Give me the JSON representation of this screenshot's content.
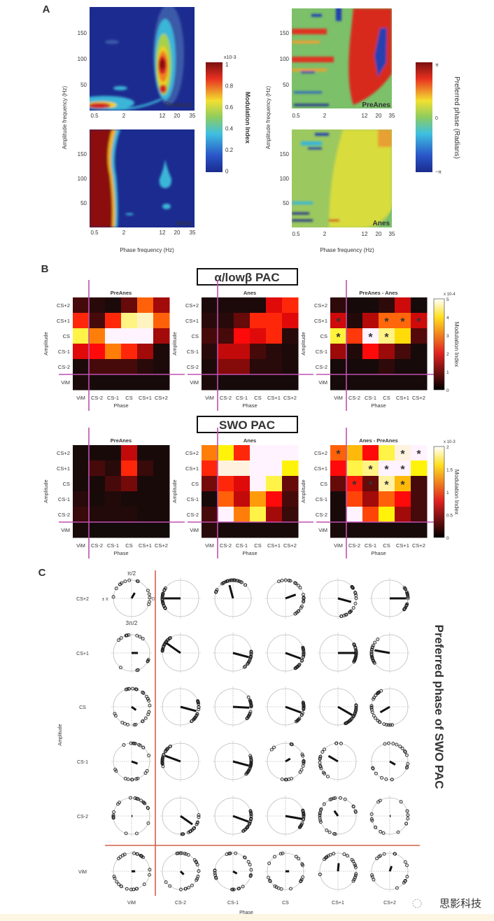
{
  "panel_a": {
    "label": "A",
    "left": {
      "plots": [
        {
          "label": "PreAnes"
        },
        {
          "label": "Anes"
        }
      ],
      "xticks": [
        "0.5",
        "2",
        "12",
        "20",
        "35"
      ],
      "yticks": [
        "150",
        "100",
        "50"
      ],
      "xlabel": "Phase frequency (Hz)",
      "ylabel": "Amplitude frequency (Hz)",
      "colorbar": {
        "title": "Modulation Index",
        "exponent": "x10-3",
        "ticks": [
          "1",
          "0.8",
          "0.6",
          "0.4",
          "0.2",
          "0"
        ],
        "colormap": "jet"
      }
    },
    "right": {
      "plots": [
        {
          "label": "PreAnes"
        },
        {
          "label": "Anes"
        }
      ],
      "xticks": [
        "0.5",
        "2",
        "12",
        "20",
        "35"
      ],
      "yticks": [
        "150",
        "100",
        "50"
      ],
      "xlabel": "Phase frequency (Hz)",
      "ylabel": "Amplitude frequency (Hz)",
      "colorbar": {
        "title": "Preferred phase (Radians)",
        "ticks": [
          "π",
          "0",
          "−π"
        ],
        "colormap": "jet"
      }
    }
  },
  "panel_b": {
    "label": "B",
    "rows": [
      "CS+2",
      "CS+1",
      "CS",
      "CS-1",
      "CS-2",
      "ViM"
    ],
    "cols": [
      "ViM",
      "CS-2",
      "CS-1",
      "CS",
      "CS+1",
      "CS+2"
    ],
    "xlabel": "Phase",
    "ylabel": "Amplitude",
    "divider_color": "#c050b0",
    "sections": [
      {
        "title": "α/lowβ PAC",
        "colorbar": {
          "title": "Modulation Index",
          "exponent": "x 10-4",
          "ticks": [
            "5",
            "4",
            "3",
            "2",
            "1",
            "0"
          ],
          "max": 5,
          "colormap": "hot"
        },
        "maps": [
          {
            "title": "PreAnes",
            "values": [
              [
                0.5,
                0.25,
                0.15,
                0.75,
                2.75,
                1.25
              ],
              [
                2.25,
                0.5,
                2.25,
                4.5,
                4.75,
                2.75
              ],
              [
                4.25,
                3,
                5,
                5,
                5,
                1.25
              ],
              [
                1.75,
                2,
                3,
                2.25,
                1.25,
                0.15
              ],
              [
                0.15,
                0.5,
                0.5,
                0.5,
                0.25,
                0.15
              ],
              [
                0.15,
                0.1,
                0.1,
                0.1,
                0.1,
                0.1
              ]
            ],
            "stars": []
          },
          {
            "title": "Anes",
            "values": [
              [
                0.15,
                0.15,
                0.15,
                0.15,
                1.75,
                2.25
              ],
              [
                0.25,
                0.25,
                0.75,
                2.25,
                2.25,
                1.75
              ],
              [
                0.5,
                0.5,
                2,
                1.75,
                2.25,
                0.25
              ],
              [
                0.25,
                1.5,
                1.5,
                0.5,
                0.25,
                0.15
              ],
              [
                0.15,
                1,
                1,
                0.25,
                0.25,
                0.15
              ],
              [
                0.15,
                0.1,
                0.1,
                0.1,
                0.1,
                0.1
              ]
            ],
            "stars": []
          },
          {
            "title": "PreAnes - Anes",
            "values": [
              [
                0.3,
                0.1,
                0.1,
                0.3,
                1.6,
                0.1
              ],
              [
                1.6,
                0.2,
                1.4,
                2.8,
                2.8,
                1.6
              ],
              [
                4.2,
                2.4,
                5,
                4.5,
                3.8,
                0.6
              ],
              [
                1.2,
                0.2,
                2.0,
                1.2,
                0.5,
                0.1
              ],
              [
                0.1,
                0.1,
                0.1,
                0.3,
                0.1,
                0.1
              ],
              [
                0.1,
                0.1,
                0.1,
                0.1,
                0.1,
                0.1
              ]
            ],
            "stars": [
              [
                1,
                0
              ],
              [
                1,
                3
              ],
              [
                1,
                4
              ],
              [
                1,
                5
              ],
              [
                2,
                0
              ],
              [
                2,
                2
              ],
              [
                2,
                3
              ]
            ]
          }
        ]
      },
      {
        "title": "SWO PAC",
        "colorbar": {
          "title": "Modulation Index",
          "exponent": "x 10-3",
          "ticks": [
            "2",
            "1.5",
            "1",
            "0.5",
            "0"
          ],
          "max": 2,
          "colormap": "hot"
        },
        "maps": [
          {
            "title": "PreAnes",
            "values": [
              [
                0.05,
                0.05,
                0.05,
                0.6,
                0.05,
                0.05
              ],
              [
                0.05,
                0.2,
                0.1,
                0.9,
                0.15,
                0.05
              ],
              [
                0.05,
                0.05,
                0.2,
                0.35,
                0.05,
                0.05
              ],
              [
                0.1,
                0.05,
                0.08,
                0.05,
                0.05,
                0.05
              ],
              [
                0.15,
                0.08,
                0.08,
                0.08,
                0.05,
                0.05
              ],
              [
                0.05,
                0.03,
                0.03,
                0.03,
                0.03,
                0.03
              ]
            ],
            "stars": []
          },
          {
            "title": "Anes",
            "values": [
              [
                1.2,
                1.6,
                0.9,
                2,
                2,
                2
              ],
              [
                0.9,
                1.95,
                1.95,
                2,
                2,
                1.6
              ],
              [
                0.35,
                0.9,
                0.7,
                2,
                1.7,
                0.3
              ],
              [
                0.05,
                1.1,
                0.6,
                1.3,
                0.8,
                0.2
              ],
              [
                0.2,
                2,
                1.2,
                1.7,
                0.5,
                0.15
              ],
              [
                0.1,
                0.05,
                0.05,
                0.05,
                0.05,
                0.05
              ]
            ],
            "stars": []
          },
          {
            "title": "Anes - PreAnes",
            "values": [
              [
                1.1,
                1.4,
                0.8,
                1.7,
                1.95,
                2
              ],
              [
                0.8,
                1.7,
                1.8,
                2,
                2,
                1.6
              ],
              [
                0.3,
                0.85,
                0.3,
                1.85,
                1.4,
                0.2
              ],
              [
                0.05,
                1.0,
                0.5,
                1.1,
                0.8,
                0.2
              ],
              [
                0.05,
                2,
                1.0,
                1.6,
                0.5,
                0.2
              ],
              [
                0.05,
                0.05,
                0.05,
                0.05,
                0.05,
                0.05
              ]
            ],
            "stars": [
              [
                0,
                0
              ],
              [
                0,
                4
              ],
              [
                0,
                5
              ],
              [
                1,
                2
              ],
              [
                1,
                3
              ],
              [
                1,
                4
              ],
              [
                2,
                1
              ],
              [
                2,
                2
              ],
              [
                2,
                3
              ],
              [
                2,
                4
              ]
            ]
          }
        ]
      }
    ]
  },
  "panel_c": {
    "label": "C",
    "rows": [
      "CS+2",
      "CS+1",
      "CS",
      "CS-1",
      "CS-2",
      "ViM"
    ],
    "cols": [
      "ViM",
      "CS-2",
      "CS-1",
      "CS",
      "CS+1",
      "CS+2"
    ],
    "xlabel": "Phase",
    "ylabel": "Amplitude",
    "side_title": "Preferred phase of SWO PAC",
    "polar_labels": {
      "top": "π/2",
      "right": "0",
      "left": "± π",
      "bottom": "3π/2"
    },
    "divider_color": "#d0604a",
    "vectors_deg": [
      [
        60,
        180,
        105,
        20,
        -15,
        0
      ],
      [
        0,
        145,
        -15,
        -20,
        0,
        170
      ],
      [
        -35,
        -15,
        -3,
        -20,
        -30,
        210
      ],
      [
        -20,
        160,
        -15,
        30,
        150,
        -30
      ],
      [
        0,
        -35,
        -20,
        -10,
        125,
        0
      ],
      [
        0,
        -45,
        -30,
        0,
        85,
        70
      ]
    ],
    "vector_lengths": [
      [
        0.35,
        0.9,
        0.75,
        0.6,
        0.75,
        0.9
      ],
      [
        0.35,
        0.95,
        0.9,
        0.9,
        0.95,
        0.85
      ],
      [
        0.3,
        0.9,
        0.9,
        0.9,
        0.9,
        0.6
      ],
      [
        0.35,
        0.9,
        0.9,
        0.3,
        0.6,
        0.35
      ],
      [
        0.05,
        0.8,
        0.9,
        0.95,
        0.35,
        0.05
      ],
      [
        0.2,
        0.25,
        0.25,
        0.2,
        0.45,
        0.3
      ]
    ]
  },
  "watermark": "思影科技"
}
